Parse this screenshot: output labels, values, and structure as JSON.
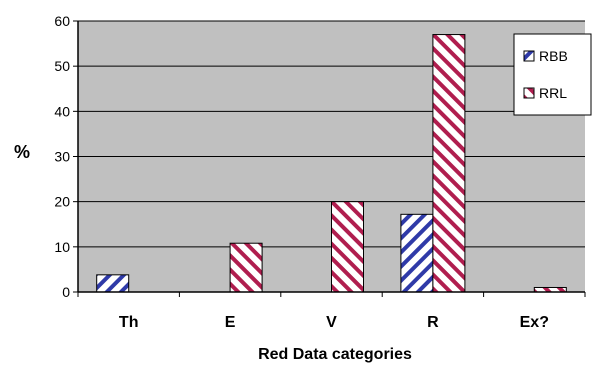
{
  "chart_data": {
    "type": "bar",
    "title": "",
    "xlabel": "Red Data categories",
    "ylabel": "%",
    "categories": [
      "Th",
      "E",
      "V",
      "R",
      "Ex?"
    ],
    "series": [
      {
        "name": "RBB",
        "values": [
          3.8,
          0,
          0,
          17.2,
          0
        ],
        "pattern": "diagonal-blue",
        "color": "#2f3aa8"
      },
      {
        "name": "RRL",
        "values": [
          0,
          10.8,
          20,
          57,
          1
        ]
      }
    ],
    "ylim": [
      0,
      60
    ],
    "yticks": [
      0,
      10,
      20,
      30,
      40,
      50,
      60
    ],
    "grid": true,
    "legend_position": "top-right",
    "colors": {
      "plot_background": "#c0c0c0",
      "grid": "#000000",
      "rbb": "#2f3aa8",
      "rrl": "#b01e4f"
    }
  }
}
